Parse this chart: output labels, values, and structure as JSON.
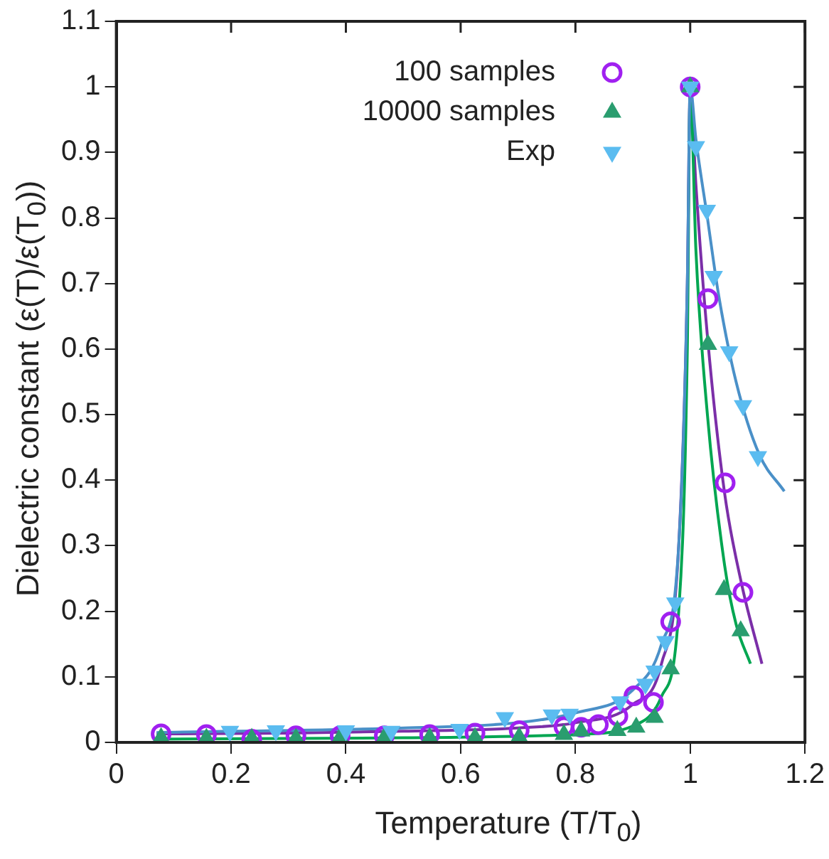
{
  "chart_data": {
    "type": "scatter",
    "xlabel": "Temperature (T/T$_{0}$)",
    "ylabel": "Dielectric constant (ε(T)/ε(T$_{0}$))",
    "xlim": [
      0,
      1.2
    ],
    "xticks": [
      0,
      0.2,
      0.4,
      0.6,
      0.8,
      1,
      1.2
    ],
    "ylim": [
      0,
      1.1
    ],
    "yticks": [
      0,
      0.1,
      0.2,
      0.3,
      0.4,
      0.5,
      0.6,
      0.7,
      0.8,
      0.9,
      1,
      1.1
    ],
    "grid": false,
    "legend": "top",
    "series": [
      {
        "name": "100 samples",
        "marker": "circle",
        "color": "#a020f0",
        "x": [
          0.078,
          0.157,
          0.236,
          0.313,
          0.39,
          0.467,
          0.546,
          0.625,
          0.702,
          0.78,
          0.81,
          0.84,
          0.874,
          0.902,
          0.936,
          0.966,
          1.0,
          1.031,
          1.061,
          1.092
        ],
        "values": [
          0.013,
          0.012,
          0.005,
          0.01,
          0.01,
          0.01,
          0.012,
          0.014,
          0.018,
          0.024,
          0.023,
          0.027,
          0.04,
          0.071,
          0.061,
          0.184,
          1.0,
          0.677,
          0.396,
          0.229
        ]
      },
      {
        "name": "10000 samples",
        "marker": "triangle",
        "color": "#2a9d6f",
        "x": [
          0.078,
          0.157,
          0.236,
          0.313,
          0.39,
          0.467,
          0.546,
          0.625,
          0.702,
          0.78,
          0.81,
          0.873,
          0.906,
          0.938,
          0.966,
          1.0,
          1.031,
          1.059,
          1.088
        ],
        "values": [
          0.007,
          0.006,
          0.006,
          0.006,
          0.007,
          0.007,
          0.007,
          0.007,
          0.008,
          0.012,
          0.017,
          0.018,
          0.023,
          0.038,
          0.112,
          1.0,
          0.607,
          0.233,
          0.17
        ]
      },
      {
        "name": "Exp",
        "marker": "triangle-down",
        "color": "#5bbcf0",
        "x": [
          0.198,
          0.278,
          0.4,
          0.479,
          0.598,
          0.677,
          0.759,
          0.79,
          0.878,
          0.922,
          0.938,
          0.957,
          0.974,
          1.0,
          1.01,
          1.029,
          1.041,
          1.068,
          1.092,
          1.118
        ],
        "values": [
          0.017,
          0.018,
          0.018,
          0.017,
          0.02,
          0.038,
          0.042,
          0.043,
          0.062,
          0.089,
          0.109,
          0.154,
          0.213,
          1.0,
          0.909,
          0.812,
          0.711,
          0.596,
          0.514,
          0.436
        ]
      },
      {
        "type": "line",
        "marker": "none",
        "color": "#7b2fa8",
        "x": [
          0.07,
          0.3,
          0.5,
          0.7,
          0.8,
          0.9,
          0.95,
          0.98,
          0.995,
          1.0,
          1.01,
          1.03,
          1.06,
          1.09,
          1.125
        ],
        "values": [
          0.013,
          0.014,
          0.017,
          0.022,
          0.03,
          0.058,
          0.12,
          0.3,
          0.7,
          1.0,
          0.85,
          0.62,
          0.38,
          0.24,
          0.12
        ]
      },
      {
        "type": "line",
        "marker": "none",
        "color": "#00a651",
        "x": [
          0.07,
          0.5,
          0.8,
          0.9,
          0.95,
          0.98,
          0.995,
          1.0,
          1.01,
          1.03,
          1.06,
          1.08,
          1.105
        ],
        "values": [
          0.005,
          0.007,
          0.012,
          0.025,
          0.07,
          0.2,
          0.6,
          1.0,
          0.75,
          0.5,
          0.27,
          0.18,
          0.12
        ]
      },
      {
        "type": "line",
        "marker": "none",
        "color": "#4a90c8",
        "x": [
          0.07,
          0.5,
          0.7,
          0.8,
          0.9,
          0.95,
          0.98,
          0.995,
          1.0,
          1.01,
          1.03,
          1.05,
          1.08,
          1.12,
          1.164
        ],
        "values": [
          0.015,
          0.022,
          0.03,
          0.045,
          0.08,
          0.15,
          0.3,
          0.7,
          1.0,
          0.92,
          0.8,
          0.68,
          0.55,
          0.44,
          0.383
        ]
      }
    ]
  }
}
